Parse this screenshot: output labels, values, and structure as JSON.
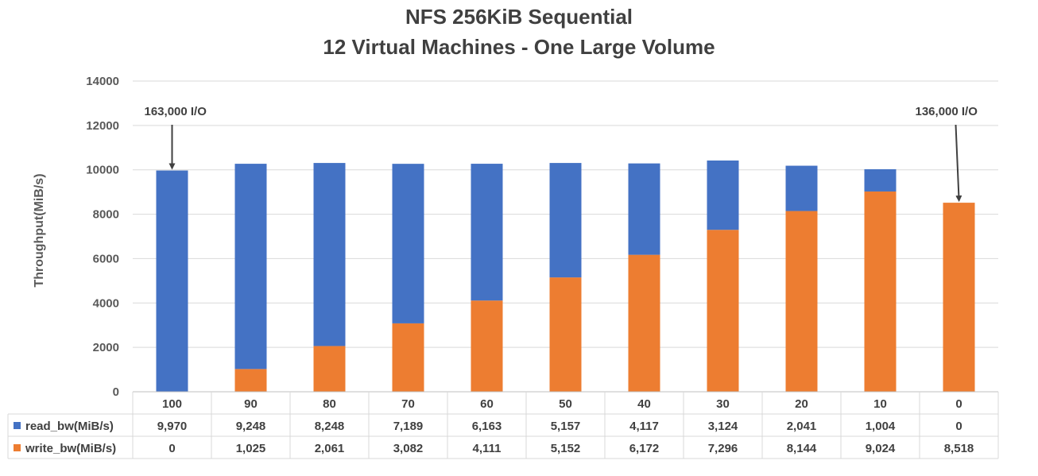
{
  "chart_data": {
    "type": "bar",
    "stacked": true,
    "title": "NFS 256KiB Sequential",
    "subtitle": "12 Virtual Machines - One Large Volume",
    "xlabel": "",
    "ylabel": "Throughput(MiB/s)",
    "ylim": [
      0,
      14000
    ],
    "yticks": [
      0,
      2000,
      4000,
      6000,
      8000,
      10000,
      12000,
      14000
    ],
    "grid": true,
    "legend_position": "data-table",
    "categories": [
      "100",
      "90",
      "80",
      "70",
      "60",
      "50",
      "40",
      "30",
      "20",
      "10",
      "0"
    ],
    "series": [
      {
        "name": "read_bw(MiB/s)",
        "color": "#4472C4",
        "values": [
          9970,
          9248,
          8248,
          7189,
          6163,
          5157,
          4117,
          3124,
          2041,
          1004,
          0
        ],
        "labels": [
          "9,970",
          "9,248",
          "8,248",
          "7,189",
          "6,163",
          "5,157",
          "4,117",
          "3,124",
          "2,041",
          "1,004",
          "0"
        ]
      },
      {
        "name": "write_bw(MiB/s)",
        "color": "#ED7D31",
        "values": [
          0,
          1025,
          2061,
          3082,
          4111,
          5152,
          6172,
          7296,
          8144,
          9024,
          8518
        ],
        "labels": [
          "0",
          "1,025",
          "2,061",
          "3,082",
          "4,111",
          "5,152",
          "6,172",
          "7,296",
          "8,144",
          "9,024",
          "8,518"
        ]
      }
    ],
    "annotations": [
      {
        "text": "163,000 I/O",
        "category": "100"
      },
      {
        "text": "136,000 I/O",
        "category": "0"
      }
    ]
  }
}
